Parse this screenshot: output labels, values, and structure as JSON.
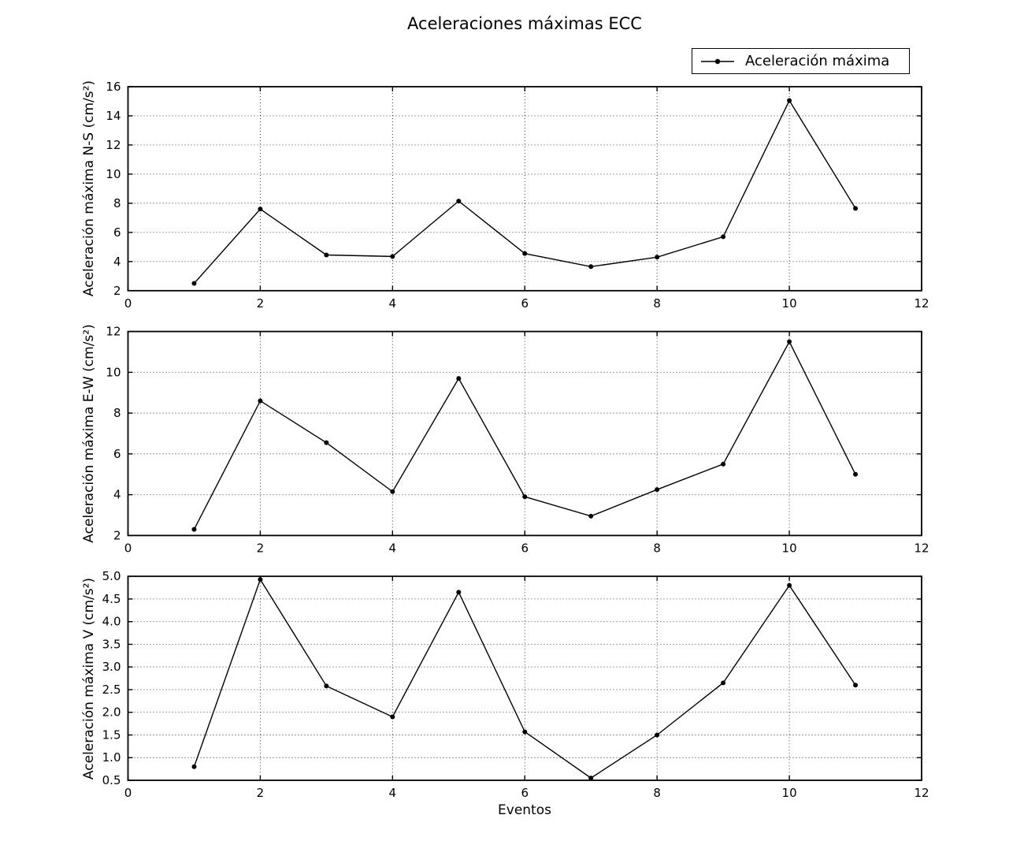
{
  "chart_data": {
    "type": "line",
    "title": "Aceleraciones máximas ECC",
    "legend": {
      "label": "Aceleración máxima",
      "position": "upper-right above first subplot",
      "marker": "filled-circle",
      "line_color": "#000000"
    },
    "xlabel": "Eventos",
    "xlim": [
      0,
      12
    ],
    "xticks": [
      0,
      2,
      4,
      6,
      8,
      10,
      12
    ],
    "xtick_labels": [
      "0",
      "2",
      "4",
      "6",
      "8",
      "10",
      "12"
    ],
    "grid": true,
    "grid_style": "dotted",
    "x": [
      1,
      2,
      3,
      4,
      5,
      6,
      7,
      8,
      9,
      10,
      11
    ],
    "subplots": [
      {
        "id": "ns",
        "ylabel": "Aceleración máxima N-S (cm/s²)",
        "ylim": [
          2,
          16
        ],
        "yticks": [
          2,
          4,
          6,
          8,
          10,
          12,
          14,
          16
        ],
        "ytick_labels": [
          "2",
          "4",
          "6",
          "8",
          "10",
          "12",
          "14",
          "16"
        ],
        "values": [
          2.5,
          7.6,
          4.45,
          4.35,
          8.15,
          4.55,
          3.65,
          4.3,
          5.7,
          15.05,
          7.65
        ]
      },
      {
        "id": "ew",
        "ylabel": "Aceleración máxima E-W (cm/s²)",
        "ylim": [
          2,
          12
        ],
        "yticks": [
          2,
          4,
          6,
          8,
          10,
          12
        ],
        "ytick_labels": [
          "2",
          "4",
          "6",
          "8",
          "10",
          "12"
        ],
        "values": [
          2.3,
          8.6,
          6.55,
          4.15,
          9.7,
          3.9,
          2.95,
          4.25,
          5.5,
          11.5,
          5.0
        ]
      },
      {
        "id": "v",
        "ylabel": "Aceleración máxima V (cm/s²)",
        "ylim": [
          0.5,
          5.0
        ],
        "yticks": [
          0.5,
          1.0,
          1.5,
          2.0,
          2.5,
          3.0,
          3.5,
          4.0,
          4.5,
          5.0
        ],
        "ytick_labels": [
          "0.5",
          "1.0",
          "1.5",
          "2.0",
          "2.5",
          "3.0",
          "3.5",
          "4.0",
          "4.5",
          "5.0"
        ],
        "values": [
          0.8,
          4.93,
          2.58,
          1.9,
          4.65,
          1.57,
          0.55,
          1.5,
          2.65,
          4.8,
          2.6
        ]
      }
    ],
    "colors": {
      "line": "#000000",
      "background": "#ffffff",
      "text": "#000000",
      "grid": "#000000"
    }
  }
}
